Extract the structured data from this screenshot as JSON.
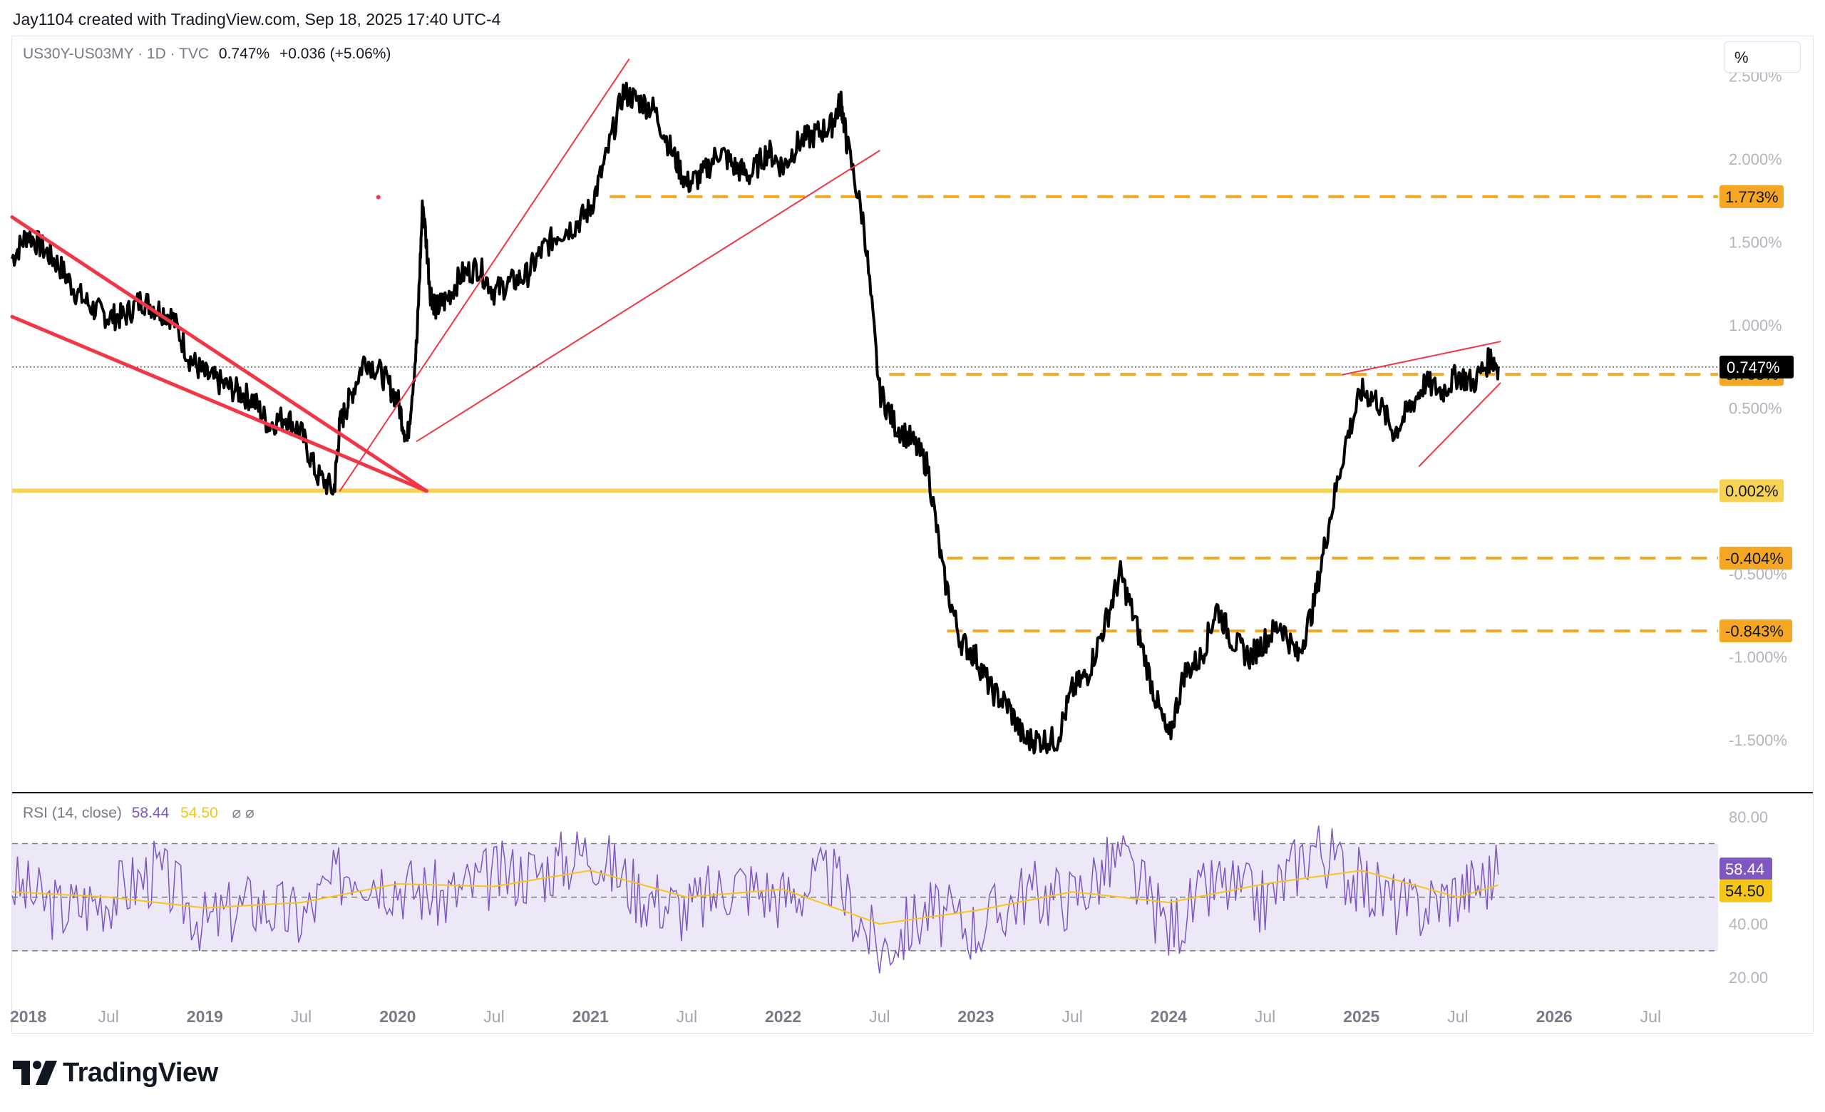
{
  "attribution": "Jay1104 created with TradingView.com, Sep 18, 2025 17:40 UTC-4",
  "legend": {
    "symbol": "US30Y-US03MY · 1D · TVC",
    "last": "0.747%",
    "change": "+0.036 (+5.06%)"
  },
  "scale_button": "%",
  "rsi_legend": {
    "label": "RSI (14, close)",
    "rsi": "58.44",
    "ma": "54.50",
    "eye_icons": "⌀ ⌀"
  },
  "logo": "TradingView",
  "colors": {
    "price": "#000000",
    "trendline": "#f23645",
    "level_orange": "#f5a623",
    "level_yellow": "#f7d354",
    "rsi_line": "#7e57c2",
    "rsi_ma": "#f5c518",
    "rsi_band": "#ede8f7"
  },
  "chart_data": [
    {
      "type": "line",
      "title": "US30Y-US03MY",
      "y_unit": "%",
      "ylim": [
        -1.8,
        2.7
      ],
      "y_ticks": [
        "2.500%",
        "2.000%",
        "1.500%",
        "1.000%",
        "0.500%",
        "-0.500%",
        "-1.000%",
        "-1.500%"
      ],
      "y_tick_values": [
        2.5,
        2.0,
        1.5,
        1.0,
        0.5,
        -0.5,
        -1.0,
        -1.5
      ],
      "x_labels": [
        "2018",
        "Jul",
        "2019",
        "Jul",
        "2020",
        "Jul",
        "2021",
        "Jul",
        "2022",
        "Jul",
        "2023",
        "Jul",
        "2024",
        "Jul",
        "2025",
        "Jul",
        "2026",
        "Jul"
      ],
      "x_label_dates": [
        2018.0,
        2018.5,
        2019.0,
        2019.5,
        2020.0,
        2020.5,
        2021.0,
        2021.5,
        2022.0,
        2022.5,
        2023.0,
        2023.5,
        2024.0,
        2024.5,
        2025.0,
        2025.5,
        2026.0,
        2026.5
      ],
      "x_bold": [
        true,
        false,
        true,
        false,
        true,
        false,
        true,
        false,
        true,
        false,
        true,
        false,
        true,
        false,
        true,
        false,
        true,
        false
      ],
      "xlim": [
        2018.0,
        2026.85
      ],
      "series": [
        {
          "x": [
            2018.0,
            2018.08,
            2018.17,
            2018.25,
            2018.33,
            2018.42,
            2018.5,
            2018.58,
            2018.67,
            2018.75,
            2018.83,
            2018.92,
            2019.0,
            2019.08,
            2019.17,
            2019.25,
            2019.33,
            2019.42,
            2019.5,
            2019.58,
            2019.67,
            2019.7,
            2019.75,
            2019.83,
            2019.92,
            2020.0,
            2020.05,
            2020.1,
            2020.13,
            2020.17,
            2020.2,
            2020.25,
            2020.33,
            2020.42,
            2020.5,
            2020.58,
            2020.67,
            2020.75,
            2020.83,
            2020.92,
            2021.0,
            2021.08,
            2021.17,
            2021.25,
            2021.33,
            2021.42,
            2021.5,
            2021.58,
            2021.67,
            2021.75,
            2021.83,
            2021.92,
            2022.0,
            2022.08,
            2022.17,
            2022.25,
            2022.3,
            2022.33,
            2022.42,
            2022.5,
            2022.58,
            2022.67,
            2022.75,
            2022.83,
            2022.92,
            2023.0,
            2023.08,
            2023.17,
            2023.25,
            2023.33,
            2023.42,
            2023.5,
            2023.58,
            2023.67,
            2023.75,
            2023.83,
            2023.92,
            2024.0,
            2024.08,
            2024.17,
            2024.25,
            2024.33,
            2024.42,
            2024.5,
            2024.58,
            2024.67,
            2024.75,
            2024.83,
            2024.92,
            2025.0,
            2025.08,
            2025.17,
            2025.25,
            2025.33,
            2025.42,
            2025.5,
            2025.58,
            2025.67,
            2025.71
          ],
          "y": [
            1.4,
            1.55,
            1.45,
            1.35,
            1.2,
            1.1,
            1.05,
            1.05,
            1.15,
            1.1,
            1.05,
            0.8,
            0.7,
            0.65,
            0.6,
            0.55,
            0.4,
            0.45,
            0.35,
            0.1,
            0.0,
            0.4,
            0.55,
            0.8,
            0.7,
            0.55,
            0.3,
            0.9,
            1.75,
            1.2,
            1.1,
            1.15,
            1.3,
            1.35,
            1.2,
            1.25,
            1.3,
            1.45,
            1.55,
            1.6,
            1.7,
            2.0,
            2.4,
            2.35,
            2.3,
            2.05,
            1.85,
            1.9,
            2.05,
            1.95,
            1.9,
            2.05,
            1.95,
            2.1,
            2.15,
            2.2,
            2.35,
            2.1,
            1.6,
            0.6,
            0.4,
            0.3,
            0.15,
            -0.5,
            -0.9,
            -1.0,
            -1.2,
            -1.3,
            -1.5,
            -1.5,
            -1.5,
            -1.2,
            -1.1,
            -0.8,
            -0.5,
            -0.8,
            -1.2,
            -1.5,
            -1.1,
            -1.0,
            -0.7,
            -0.9,
            -1.0,
            -0.9,
            -0.8,
            -1.0,
            -0.7,
            -0.2,
            0.3,
            0.6,
            0.55,
            0.35,
            0.5,
            0.65,
            0.6,
            0.7,
            0.65,
            0.8,
            0.75
          ]
        }
      ],
      "levels": [
        {
          "value": 1.773,
          "label": "1.773%",
          "style": "dashed",
          "color": "#f5a623"
        },
        {
          "value": 0.703,
          "label": "0.703%",
          "style": "dashed",
          "color": "#f5a623"
        },
        {
          "value": 0.002,
          "label": "0.002%",
          "style": "solid",
          "color": "#f7d354"
        },
        {
          "value": -0.404,
          "label": "-0.404%",
          "style": "dashed",
          "color": "#f5a623"
        },
        {
          "value": -0.843,
          "label": "-0.843%",
          "style": "dashed",
          "color": "#f5a623"
        }
      ],
      "last_price": {
        "value": 0.747,
        "label": "0.747%"
      },
      "trendlines": [
        {
          "x": [
            2018.0,
            2020.15
          ],
          "y": [
            1.05,
            0.0
          ],
          "width": 5
        },
        {
          "x": [
            2018.0,
            2020.15
          ],
          "y": [
            1.65,
            0.0
          ],
          "width": 5
        },
        {
          "x": [
            2019.7,
            2021.2
          ],
          "y": [
            0.0,
            2.6
          ],
          "width": 2
        },
        {
          "x": [
            2020.1,
            2022.5
          ],
          "y": [
            0.3,
            2.05
          ],
          "width": 2
        },
        {
          "x": [
            2025.3,
            2025.72
          ],
          "y": [
            0.15,
            0.65
          ],
          "width": 2
        },
        {
          "x": [
            2024.9,
            2025.72
          ],
          "y": [
            0.7,
            0.9
          ],
          "width": 2
        }
      ]
    },
    {
      "type": "line",
      "title": "RSI (14, close)",
      "ylim": [
        15,
        88
      ],
      "y_ticks": [
        "80.00",
        "40.00",
        "20.00"
      ],
      "y_tick_values": [
        80,
        40,
        20
      ],
      "band": [
        30,
        70
      ],
      "midline": 50,
      "series": [
        {
          "name": "RSI",
          "last": 58.44,
          "label": "58.44",
          "x": [
            2018.0,
            2018.25,
            2018.5,
            2018.75,
            2019.0,
            2019.25,
            2019.5,
            2019.75,
            2020.0,
            2020.25,
            2020.5,
            2020.75,
            2021.0,
            2021.25,
            2021.5,
            2021.75,
            2022.0,
            2022.25,
            2022.5,
            2022.75,
            2023.0,
            2023.25,
            2023.5,
            2023.75,
            2024.0,
            2024.25,
            2024.5,
            2024.75,
            2025.0,
            2025.25,
            2025.5,
            2025.71
          ],
          "y": [
            55,
            45,
            50,
            60,
            40,
            48,
            42,
            62,
            55,
            50,
            58,
            60,
            68,
            52,
            45,
            56,
            50,
            58,
            30,
            45,
            38,
            52,
            50,
            65,
            38,
            55,
            48,
            70,
            55,
            45,
            52,
            58.44
          ]
        },
        {
          "name": "RSI MA",
          "last": 54.5,
          "label": "54.50",
          "x": [
            2018.0,
            2018.5,
            2019.0,
            2019.5,
            2020.0,
            2020.5,
            2021.0,
            2021.5,
            2022.0,
            2022.5,
            2023.0,
            2023.5,
            2024.0,
            2024.5,
            2025.0,
            2025.5,
            2025.71
          ],
          "y": [
            52,
            50,
            46,
            48,
            55,
            54,
            60,
            50,
            53,
            40,
            45,
            52,
            48,
            55,
            60,
            50,
            54.5
          ]
        }
      ]
    }
  ]
}
